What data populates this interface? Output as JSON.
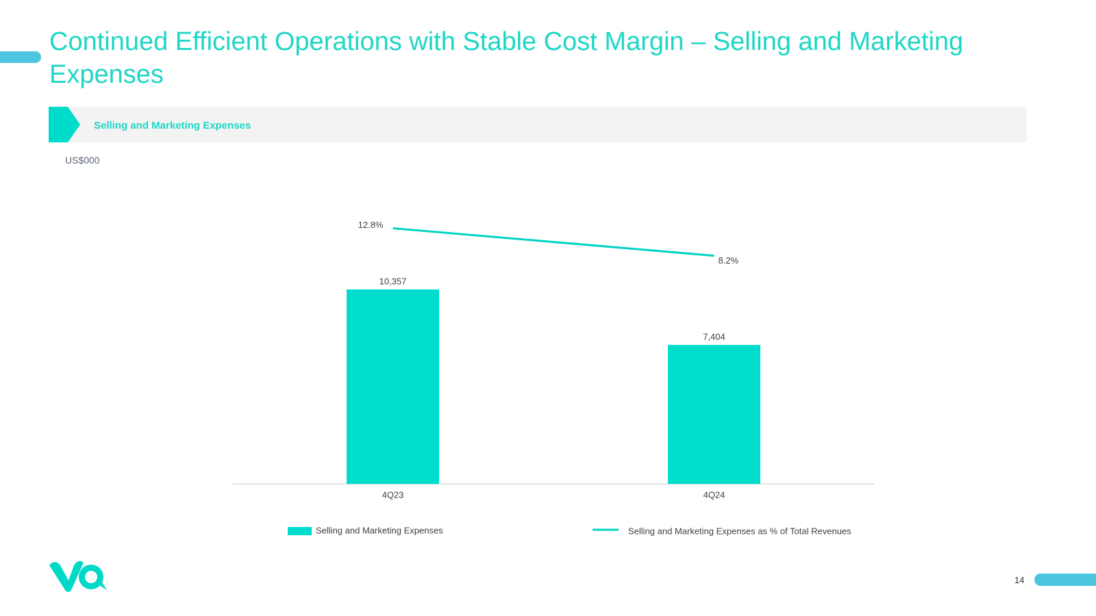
{
  "header": {
    "title": "Continued Efficient Operations with Stable Cost Margin – Selling and Marketing Expenses",
    "section": "Selling and Marketing Expenses",
    "unit": "US$000"
  },
  "chart_data": {
    "type": "bar",
    "categories": [
      "4Q23",
      "4Q24"
    ],
    "series": [
      {
        "name": "Selling and Marketing Expenses",
        "type": "bar",
        "color": "#00ddcc",
        "values": [
          10357,
          7404
        ],
        "value_labels": [
          "10,357",
          "7,404"
        ]
      },
      {
        "name": "Selling and Marketing Expenses as % of Total Revenues",
        "type": "line",
        "axis": "y2",
        "color": "#00d4c4",
        "values": [
          12.8,
          8.2
        ],
        "value_labels": [
          "12.8%",
          "8.2%"
        ]
      }
    ],
    "ylim": [
      0,
      14000
    ],
    "y2lim": [
      -30,
      14
    ]
  },
  "page_number": "14"
}
